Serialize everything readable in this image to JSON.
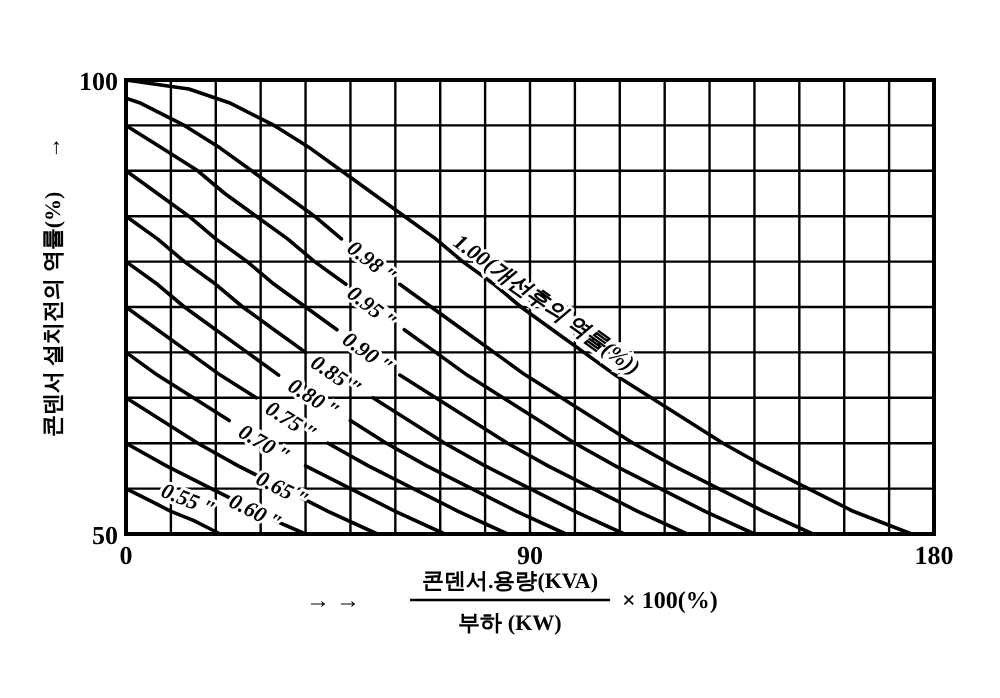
{
  "chart_data": {
    "type": "line",
    "annotations": [
      "→ →",
      "콘덴서.용량(KVA)",
      "부하 (KW)",
      "× 100(%)"
    ],
    "ylabel": "콘덴서 설치전의 역률(%)      →",
    "xlim": [
      0,
      180
    ],
    "ylim": [
      50,
      100
    ],
    "xticks": [
      0,
      {
        "value": 10,
        "label": null
      },
      {
        "value": 20,
        "label": null
      },
      {
        "value": 30,
        "label": null
      },
      {
        "value": 40,
        "label": null
      },
      {
        "value": 50,
        "label": null
      },
      {
        "value": 60,
        "label": null
      },
      {
        "value": 70,
        "label": null
      },
      {
        "value": 80,
        "label": null
      },
      90,
      {
        "value": 100,
        "label": null
      },
      {
        "value": 110,
        "label": null
      },
      {
        "value": 120,
        "label": null
      },
      {
        "value": 130,
        "label": null
      },
      {
        "value": 140,
        "label": null
      },
      {
        "value": 150,
        "label": null
      },
      {
        "value": 160,
        "label": null
      },
      {
        "value": 170,
        "label": null
      },
      180
    ],
    "yticks": [
      50,
      {
        "value": 55,
        "label": null
      },
      {
        "value": 60,
        "label": null
      },
      {
        "value": 65,
        "label": null
      },
      {
        "value": 70,
        "label": null
      },
      {
        "value": 75,
        "label": null
      },
      {
        "value": 80,
        "label": null
      },
      {
        "value": 85,
        "label": null
      },
      {
        "value": 90,
        "label": null
      },
      {
        "value": 95,
        "label": null
      },
      100
    ],
    "grid": true,
    "marker": "none",
    "line_style": "solid",
    "series": [
      {
        "name": "1.00(개선후의 역률(%))",
        "color": "#000000",
        "x": [
          0,
          14,
          23,
          33,
          41,
          48,
          55,
          62,
          69,
          75,
          82,
          88,
          95,
          102,
          109,
          117,
          125,
          133,
          142,
          152,
          162,
          175
        ],
        "values": [
          100,
          99,
          97.5,
          95,
          92.5,
          90,
          87.5,
          85,
          82.5,
          80,
          77.5,
          75,
          72.5,
          70,
          67.5,
          65,
          62.5,
          60,
          57.5,
          55,
          52.5,
          50
        ]
      },
      {
        "name": "0.98 ″",
        "color": "#000000",
        "x": [
          0,
          3,
          13,
          21,
          28,
          35,
          42,
          48,
          55,
          61,
          68,
          75,
          82,
          89,
          97,
          105,
          113,
          122,
          132,
          142,
          153
        ],
        "values": [
          98,
          97.5,
          95,
          92.5,
          90,
          87.5,
          85,
          82.5,
          null,
          77.5,
          75,
          72.5,
          70,
          67.5,
          65,
          62.5,
          60,
          57.5,
          55,
          52.5,
          50
        ]
      },
      {
        "name": "0.95 ″",
        "color": "#000000",
        "x": [
          0,
          8,
          16,
          22,
          29,
          36,
          42,
          49,
          55,
          62,
          69,
          76,
          84,
          92,
          100,
          109,
          119,
          129,
          140
        ],
        "values": [
          95,
          92.5,
          90,
          87.5,
          85,
          82.5,
          80,
          77.5,
          null,
          72.5,
          70,
          67.5,
          65,
          62.5,
          60,
          57.5,
          55,
          52.5,
          50
        ]
      },
      {
        "name": "0.90 ″",
        "color": "#000000",
        "x": [
          0,
          7,
          14,
          20,
          27,
          33,
          40,
          47,
          54,
          61,
          69,
          77,
          85,
          94,
          104,
          114,
          125
        ],
        "values": [
          90,
          87.5,
          85,
          82.5,
          80,
          77.5,
          75,
          72.5,
          null,
          67.5,
          65,
          62.5,
          60,
          57.5,
          55,
          52.5,
          50
        ]
      },
      {
        "name": "0.85 ″",
        "color": "#000000",
        "x": [
          0,
          7,
          13,
          20,
          26,
          33,
          40,
          47,
          55,
          63,
          71,
          80,
          90,
          100,
          111
        ],
        "values": [
          85,
          82.5,
          80,
          77.5,
          75,
          72.5,
          70,
          null,
          65,
          62.5,
          60,
          57.5,
          55,
          52.5,
          50
        ]
      },
      {
        "name": "0.80 ″",
        "color": "#000000",
        "x": [
          0,
          7,
          13,
          20,
          27,
          34,
          42,
          50,
          58,
          67,
          77,
          87,
          98
        ],
        "values": [
          80,
          77.5,
          75,
          72.5,
          70,
          67.5,
          null,
          62.5,
          60,
          57.5,
          55,
          52.5,
          50
        ]
      },
      {
        "name": "0.75 ″",
        "color": "#000000",
        "x": [
          0,
          7,
          14,
          21,
          29,
          37,
          45,
          54,
          64,
          74,
          85
        ],
        "values": [
          75,
          72.5,
          70,
          67.5,
          65,
          null,
          60,
          57.5,
          55,
          52.5,
          50
        ]
      },
      {
        "name": "0.70 ″",
        "color": "#000000",
        "x": [
          0,
          7,
          15,
          23,
          31,
          40,
          50,
          60,
          71
        ],
        "values": [
          70,
          67.5,
          65,
          62.5,
          null,
          57.5,
          55,
          52.5,
          50
        ]
      },
      {
        "name": "0.65 ″",
        "color": "#000000",
        "x": [
          0,
          8,
          16,
          25,
          31,
          35,
          39,
          45,
          56
        ],
        "values": [
          65,
          62.5,
          60,
          57.5,
          56,
          null,
          54,
          52.5,
          50
        ]
      },
      {
        "name": "0.60 ″",
        "color": "#000000",
        "x": [
          0,
          9,
          19,
          25,
          29,
          33,
          40
        ],
        "values": [
          60,
          57.5,
          55,
          53.5,
          null,
          51.5,
          50
        ]
      },
      {
        "name": "0.55 ″",
        "color": "#000000",
        "x": [
          0,
          6,
          10,
          15,
          21
        ],
        "values": [
          55,
          53.5,
          52.5,
          51.5,
          50
        ]
      }
    ]
  }
}
